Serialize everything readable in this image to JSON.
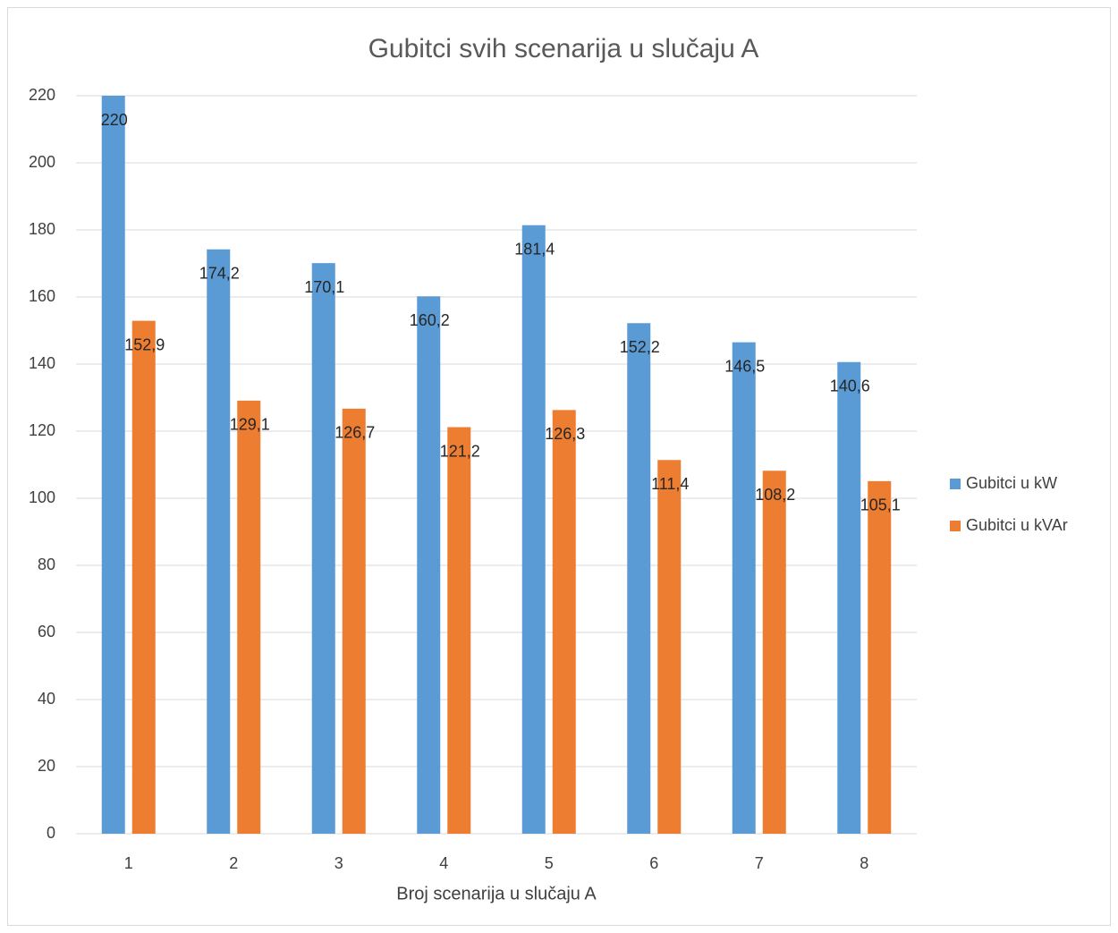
{
  "chart_data": {
    "type": "bar",
    "title": "Gubitci svih scenarija u slučaju A",
    "x_label": "Broj scenarija u slučaju A",
    "categories": [
      "1",
      "2",
      "3",
      "4",
      "5",
      "6",
      "7",
      "8"
    ],
    "series": [
      {
        "name": "Gubitci u kW",
        "color": "#5b9bd5",
        "values": [
          220,
          174.2,
          170.1,
          160.2,
          181.4,
          152.2,
          146.5,
          140.6
        ],
        "value_labels": [
          "220",
          "174,2",
          "170,1",
          "160,2",
          "181,4",
          "152,2",
          "146,5",
          "140,6"
        ]
      },
      {
        "name": "Gubitci u kVAr",
        "color": "#ed7d31",
        "values": [
          152.9,
          129.1,
          126.7,
          121.2,
          126.3,
          111.4,
          108.2,
          105.1
        ],
        "value_labels": [
          "152,9",
          "129,1",
          "126,7",
          "121,2",
          "126,3",
          "111,4",
          "108,2",
          "105,1"
        ]
      }
    ],
    "ylim": [
      0,
      220
    ],
    "yticks": [
      0,
      20,
      40,
      60,
      80,
      100,
      120,
      140,
      160,
      180,
      200,
      220
    ],
    "grid": true,
    "legend": "right"
  }
}
